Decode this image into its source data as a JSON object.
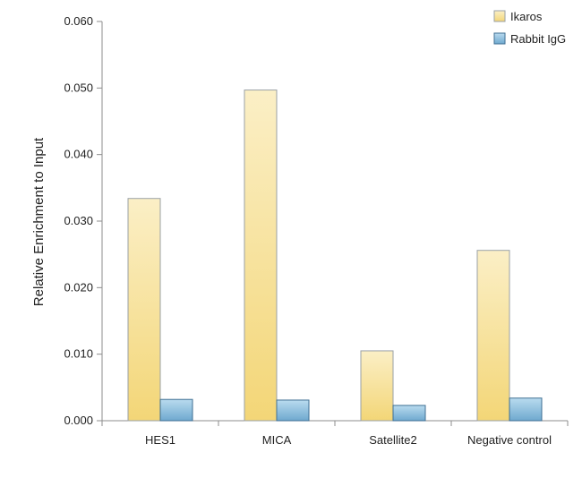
{
  "chart_data": {
    "type": "bar",
    "categories": [
      "HES1",
      "MICA",
      "Satellite2",
      "Negative control"
    ],
    "series": [
      {
        "name": "Ikaros",
        "values": [
          0.0334,
          0.0497,
          0.0105,
          0.0256
        ]
      },
      {
        "name": "Rabbit IgG",
        "values": [
          0.0032,
          0.0031,
          0.0023,
          0.0034
        ]
      }
    ],
    "title": "",
    "xlabel": "",
    "ylabel": "Relative Enrichment to Input",
    "ylim": [
      0,
      0.06
    ],
    "yticks": [
      "0.000",
      "0.010",
      "0.020",
      "0.030",
      "0.040",
      "0.050",
      "0.060"
    ],
    "grid": false,
    "legend_position": "top-right",
    "colors": {
      "Ikaros": "#f6dc86",
      "Rabbit IgG": "#88bddd"
    }
  }
}
